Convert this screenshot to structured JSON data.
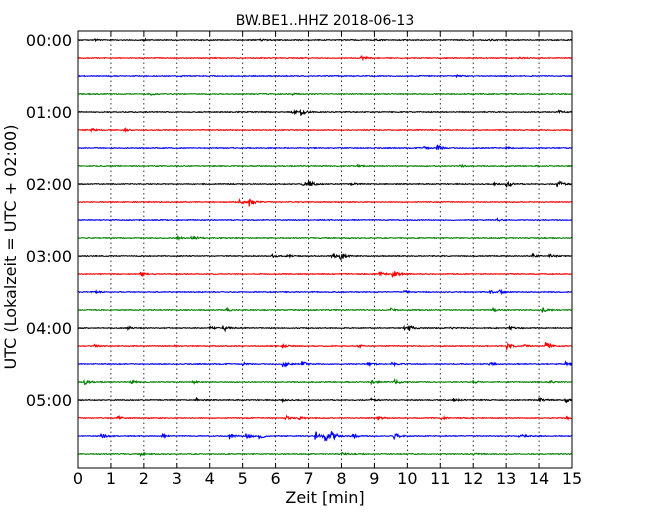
{
  "chart_data": {
    "type": "line",
    "title": "BW.BE1..HHZ 2018-06-13",
    "xlabel": "Zeit  [min]",
    "ylabel": "UTC (Lokalzeit = UTC + 02:00)",
    "xlim": [
      0,
      15
    ],
    "xticks": [
      "0",
      "1",
      "2",
      "3",
      "4",
      "5",
      "6",
      "7",
      "8",
      "9",
      "10",
      "11",
      "12",
      "13",
      "14",
      "15"
    ],
    "yticks": [
      "00:00",
      "01:00",
      "02:00",
      "03:00",
      "04:00",
      "05:00"
    ],
    "grid": "vertical dotted at each minute",
    "color_cycle": [
      "#000000",
      "#ff0000",
      "#0000ff",
      "#007f00"
    ],
    "traces": [
      {
        "start": "00:00",
        "events": [
          {
            "t": 0.5,
            "a": 1.5
          },
          {
            "t": 2.0,
            "a": 1.2
          },
          {
            "t": 5.5,
            "a": 1.3
          },
          {
            "t": 9.0,
            "a": 1.3
          },
          {
            "t": 12.5,
            "a": 1.4
          }
        ]
      },
      {
        "start": "00:15",
        "events": [
          {
            "t": 8.6,
            "a": 3
          },
          {
            "t": 13.4,
            "a": 1.5
          }
        ]
      },
      {
        "start": "00:30",
        "events": [
          {
            "t": 3.0,
            "a": 1.2
          },
          {
            "t": 11.5,
            "a": 1.2
          }
        ]
      },
      {
        "start": "00:45",
        "events": [
          {
            "t": 2.2,
            "a": 1.2
          },
          {
            "t": 6.5,
            "a": 1.2
          }
        ]
      },
      {
        "start": "01:00",
        "events": [
          {
            "t": 6.5,
            "a": 3
          },
          {
            "t": 6.75,
            "a": 5
          },
          {
            "t": 14.6,
            "a": 2.5
          }
        ]
      },
      {
        "start": "01:15",
        "events": [
          {
            "t": 0.4,
            "a": 3
          },
          {
            "t": 1.4,
            "a": 2
          }
        ]
      },
      {
        "start": "01:30",
        "events": [
          {
            "t": 10.5,
            "a": 2.5
          },
          {
            "t": 10.9,
            "a": 5
          },
          {
            "t": 13.0,
            "a": 1.5
          }
        ]
      },
      {
        "start": "01:45",
        "events": [
          {
            "t": 8.5,
            "a": 1.5
          },
          {
            "t": 11.6,
            "a": 1.5
          }
        ]
      },
      {
        "start": "02:00",
        "events": [
          {
            "t": 6.8,
            "a": 3
          },
          {
            "t": 7.0,
            "a": 5
          },
          {
            "t": 8.3,
            "a": 1.8
          },
          {
            "t": 12.6,
            "a": 2
          },
          {
            "t": 13.0,
            "a": 6
          },
          {
            "t": 14.55,
            "a": 7
          }
        ]
      },
      {
        "start": "02:15",
        "events": [
          {
            "t": 4.9,
            "a": 3
          },
          {
            "t": 5.2,
            "a": 6
          }
        ]
      },
      {
        "start": "02:30",
        "events": [
          {
            "t": 12.7,
            "a": 2
          }
        ]
      },
      {
        "start": "02:45",
        "events": [
          {
            "t": 3.0,
            "a": 2.5
          },
          {
            "t": 3.45,
            "a": 4
          }
        ]
      },
      {
        "start": "03:00",
        "events": [
          {
            "t": 5.9,
            "a": 2.5
          },
          {
            "t": 6.3,
            "a": 2.5
          },
          {
            "t": 7.7,
            "a": 3
          },
          {
            "t": 7.95,
            "a": 6
          },
          {
            "t": 13.8,
            "a": 2.5
          },
          {
            "t": 14.3,
            "a": 3
          }
        ]
      },
      {
        "start": "03:15",
        "events": [
          {
            "t": 1.9,
            "a": 3
          },
          {
            "t": 9.15,
            "a": 3
          },
          {
            "t": 9.55,
            "a": 6
          }
        ]
      },
      {
        "start": "03:30",
        "events": [
          {
            "t": 0.5,
            "a": 1.5
          },
          {
            "t": 9.9,
            "a": 2
          },
          {
            "t": 12.5,
            "a": 2.5
          },
          {
            "t": 12.8,
            "a": 2
          }
        ]
      },
      {
        "start": "03:45",
        "events": [
          {
            "t": 4.5,
            "a": 2
          },
          {
            "t": 9.5,
            "a": 2
          },
          {
            "t": 12.6,
            "a": 2
          },
          {
            "t": 14.1,
            "a": 3
          }
        ]
      },
      {
        "start": "04:00",
        "events": [
          {
            "t": 1.5,
            "a": 2.5
          },
          {
            "t": 4.0,
            "a": 2
          },
          {
            "t": 4.4,
            "a": 6
          },
          {
            "t": 9.9,
            "a": 2
          },
          {
            "t": 10.05,
            "a": 4
          },
          {
            "t": 11.3,
            "a": 2
          },
          {
            "t": 13.1,
            "a": 3
          }
        ]
      },
      {
        "start": "04:15",
        "events": [
          {
            "t": 0.5,
            "a": 2
          },
          {
            "t": 2.9,
            "a": 2
          },
          {
            "t": 6.2,
            "a": 3
          },
          {
            "t": 8.5,
            "a": 2
          },
          {
            "t": 13.0,
            "a": 6
          },
          {
            "t": 13.5,
            "a": 2.5
          },
          {
            "t": 14.2,
            "a": 7
          }
        ]
      },
      {
        "start": "04:30",
        "events": [
          {
            "t": 5.0,
            "a": 2
          },
          {
            "t": 6.2,
            "a": 5
          },
          {
            "t": 6.8,
            "a": 4
          },
          {
            "t": 8.8,
            "a": 3
          },
          {
            "t": 9.5,
            "a": 3
          },
          {
            "t": 12.5,
            "a": 3
          },
          {
            "t": 14.8,
            "a": 3
          }
        ]
      },
      {
        "start": "04:45",
        "events": [
          {
            "t": 0.2,
            "a": 4
          },
          {
            "t": 1.6,
            "a": 2.5
          },
          {
            "t": 3.5,
            "a": 2.5
          },
          {
            "t": 8.9,
            "a": 3
          },
          {
            "t": 9.6,
            "a": 5
          },
          {
            "t": 12.0,
            "a": 2.5
          },
          {
            "t": 14.3,
            "a": 2.5
          }
        ]
      },
      {
        "start": "05:00",
        "events": [
          {
            "t": 3.6,
            "a": 2
          },
          {
            "t": 6.2,
            "a": 2
          },
          {
            "t": 8.9,
            "a": 2
          },
          {
            "t": 11.4,
            "a": 2
          },
          {
            "t": 14.0,
            "a": 3
          },
          {
            "t": 14.8,
            "a": 3
          }
        ]
      },
      {
        "start": "05:15",
        "events": [
          {
            "t": 1.2,
            "a": 2.5
          },
          {
            "t": 6.3,
            "a": 3
          },
          {
            "t": 6.7,
            "a": 2
          },
          {
            "t": 9.1,
            "a": 3
          },
          {
            "t": 11.0,
            "a": 2.5
          },
          {
            "t": 14.8,
            "a": 2
          }
        ]
      },
      {
        "start": "05:30",
        "events": [
          {
            "t": 0.7,
            "a": 3
          },
          {
            "t": 2.5,
            "a": 3
          },
          {
            "t": 4.6,
            "a": 4
          },
          {
            "t": 5.1,
            "a": 5
          },
          {
            "t": 5.5,
            "a": 5
          },
          {
            "t": 7.2,
            "a": 8
          },
          {
            "t": 7.45,
            "a": 14
          },
          {
            "t": 7.7,
            "a": 7
          },
          {
            "t": 8.3,
            "a": 5
          },
          {
            "t": 9.6,
            "a": 5
          },
          {
            "t": 13.4,
            "a": 3
          }
        ]
      },
      {
        "start": "05:45",
        "events": [
          {
            "t": 1.9,
            "a": 2
          },
          {
            "t": 8.0,
            "a": 2
          },
          {
            "t": 12.0,
            "a": 2
          }
        ]
      }
    ]
  }
}
